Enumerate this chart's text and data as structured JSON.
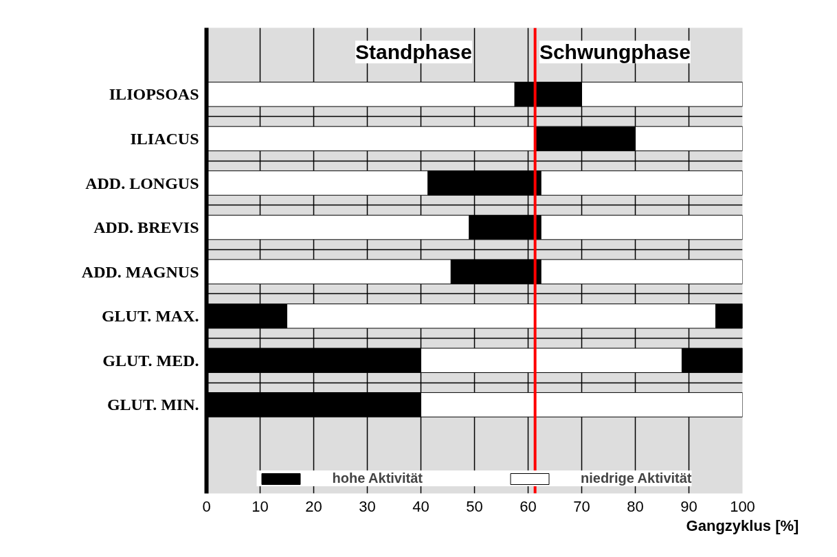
{
  "chart_data": {
    "type": "bar",
    "orientation": "horizontal",
    "xlabel": "Gangzyklus [%]",
    "categories": [
      "ILIOPSOAS",
      "ILIACUS",
      "ADD. LONGUS",
      "ADD. BREVIS",
      "ADD. MAGNUS",
      "GLUT. MAX.",
      "GLUT. MED.",
      "GLUT. MIN."
    ],
    "series": [
      {
        "name": "hohe Aktivität",
        "color": "#000000",
        "base": [
          57.5,
          61.3,
          41.3,
          49,
          45.6,
          0,
          0,
          0
        ],
        "values": [
          12.5,
          18.7,
          21.1,
          13.4,
          16.8,
          15,
          40,
          40
        ]
      },
      {
        "color": "#000000",
        "base": [
          null,
          null,
          null,
          null,
          null,
          95,
          88.7,
          null
        ],
        "values": [
          null,
          null,
          null,
          null,
          null,
          5,
          11.3,
          null
        ]
      },
      {
        "name": "niedrige Aktivität",
        "color": "#ffffff",
        "base": [
          0,
          0,
          0,
          0,
          0,
          15,
          40,
          40
        ],
        "values": [
          57.5,
          61.3,
          41.3,
          49,
          45.6,
          80,
          48.7,
          60
        ]
      },
      {
        "color": "#ffffff",
        "base": [
          70,
          80,
          62.4,
          62.4,
          62.4,
          null,
          null,
          null
        ],
        "values": [
          30,
          20,
          37.6,
          37.6,
          37.6,
          null,
          null,
          null
        ]
      }
    ],
    "xlim": [
      0,
      100
    ],
    "xticks": [
      0,
      10,
      20,
      30,
      40,
      50,
      60,
      70,
      80,
      90,
      100
    ],
    "ref_lines": [
      {
        "axis": "x",
        "value": 61.3,
        "color": "#ff0000"
      }
    ],
    "annotations": [
      "Standphase",
      "Schwungphase"
    ],
    "grid": true,
    "legend": "bottom"
  }
}
